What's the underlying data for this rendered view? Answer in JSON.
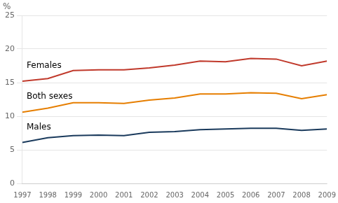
{
  "chart_data": {
    "type": "line",
    "ylabel": "%",
    "x": [
      1997,
      1998,
      1999,
      2000,
      2001,
      2002,
      2003,
      2004,
      2005,
      2006,
      2007,
      2008,
      2009
    ],
    "xlim": [
      1997,
      2009
    ],
    "xticks": [
      1997,
      1998,
      1999,
      2000,
      2001,
      2002,
      2003,
      2004,
      2005,
      2006,
      2007,
      2008,
      2009
    ],
    "series": [
      {
        "name": "Females",
        "color": "#c0392b",
        "values": [
          15.2,
          15.6,
          16.8,
          16.9,
          16.9,
          17.2,
          17.6,
          18.2,
          18.1,
          18.6,
          18.5,
          17.5,
          18.2
        ]
      },
      {
        "name": "Both sexes",
        "color": "#e67e00",
        "values": [
          10.6,
          11.2,
          12.0,
          12.0,
          11.9,
          12.4,
          12.7,
          13.3,
          13.3,
          13.5,
          13.4,
          12.6,
          13.2
        ]
      },
      {
        "name": "Males",
        "color": "#1a3a5c",
        "values": [
          6.1,
          6.8,
          7.1,
          7.2,
          7.1,
          7.6,
          7.7,
          8.0,
          8.1,
          8.2,
          8.2,
          7.9,
          8.1
        ]
      }
    ],
    "ylim": [
      0,
      25
    ],
    "yticks": [
      0,
      5,
      10,
      15,
      20,
      25
    ],
    "grid": "y"
  }
}
